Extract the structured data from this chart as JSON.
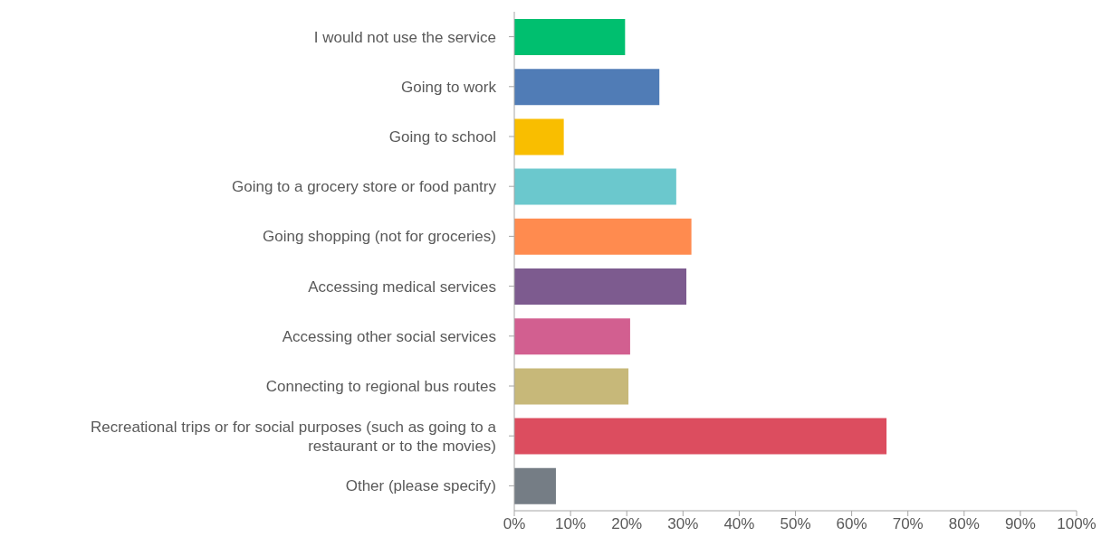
{
  "chart_data": {
    "type": "bar",
    "orientation": "horizontal",
    "categories": [
      "I would not use the service",
      "Going to work",
      "Going to school",
      "Going to a grocery store or food pantry",
      "Going shopping (not for groceries)",
      "Accessing medical services",
      "Accessing other social services",
      "Connecting to regional bus routes",
      "Recreational trips or for social purposes (such as going to a restaurant or to the movies)",
      "Other (please specify)"
    ],
    "values": [
      19.7,
      25.8,
      8.8,
      28.8,
      31.5,
      30.6,
      20.6,
      20.3,
      66.2,
      7.4
    ],
    "colors": [
      "#00bf6f",
      "#507cb6",
      "#f9be00",
      "#6bc8cd",
      "#ff8b4f",
      "#7d5b8f",
      "#d25f90",
      "#c7b879",
      "#dc4d5f",
      "#757d85"
    ],
    "xlim": [
      0,
      100
    ],
    "xticks": [
      {
        "value": 0,
        "label": "0%"
      },
      {
        "value": 10,
        "label": "10%"
      },
      {
        "value": 20,
        "label": "20%"
      },
      {
        "value": 30,
        "label": "30%"
      },
      {
        "value": 40,
        "label": "40%"
      },
      {
        "value": 50,
        "label": "50%"
      },
      {
        "value": 60,
        "label": "60%"
      },
      {
        "value": 70,
        "label": "70%"
      },
      {
        "value": 80,
        "label": "80%"
      },
      {
        "value": 90,
        "label": "90%"
      },
      {
        "value": 100,
        "label": "100%"
      }
    ],
    "grid": false
  }
}
